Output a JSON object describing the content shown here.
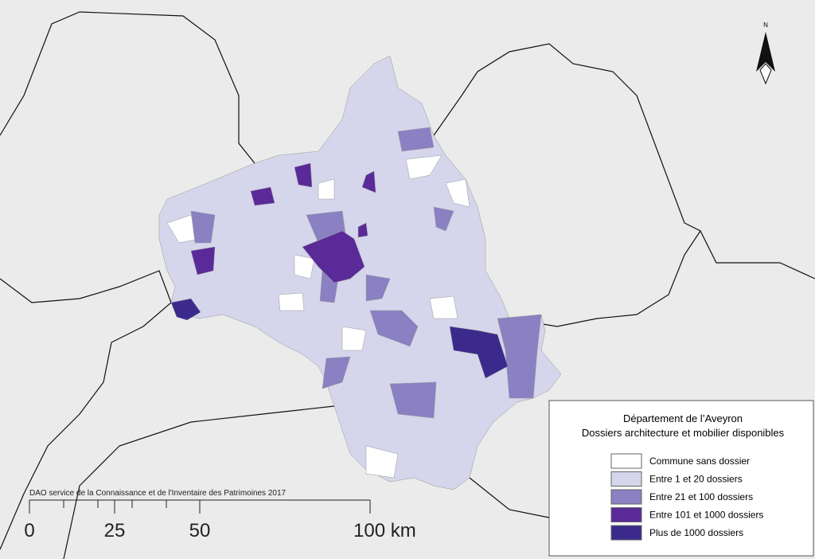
{
  "credit": "DAO service de la Connaissance et de l'Inventaire des Patrimoines 2017",
  "north": "N",
  "scale": {
    "labels": [
      "0",
      "25",
      "50",
      "100 km"
    ]
  },
  "legend": {
    "title": [
      "Département de l’Aveyron",
      "Dossiers architecture et mobilier disponibles"
    ],
    "items": [
      {
        "label": "Commune sans dossier",
        "color": "#ffffff"
      },
      {
        "label": "Entre 1 et 20 dossiers",
        "color": "#d5d5ec"
      },
      {
        "label": "Entre 21 et 100 dossiers",
        "color": "#8b80c2"
      },
      {
        "label": "Entre 101 et 1000 dossiers",
        "color": "#5a2a98"
      },
      {
        "label": "Plus de 1000 dossiers",
        "color": "#3b2a8c"
      }
    ]
  }
}
